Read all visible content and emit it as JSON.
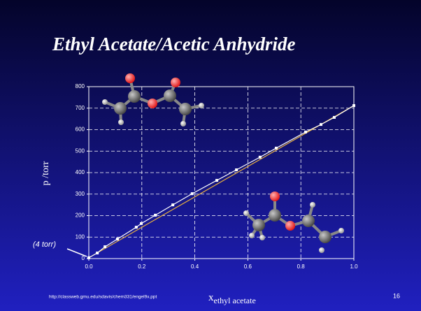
{
  "chart_data": {
    "type": "line",
    "title": "Ethyl Acetate/Acetic Anhydride",
    "ylabel": "p /torr",
    "xlabel": "x",
    "xlabel_subscript": "ethyl acetate",
    "annotation": "(4 torr)",
    "xlim": [
      0,
      1
    ],
    "ylim": [
      0,
      800
    ],
    "xticks": [
      {
        "value": 0,
        "label": "0.0"
      },
      {
        "value": 0.2,
        "label": "0.2"
      },
      {
        "value": 0.4,
        "label": "0.4"
      },
      {
        "value": 0.6,
        "label": "0.6"
      },
      {
        "value": 0.8,
        "label": "0.8"
      },
      {
        "value": 1,
        "label": "1.0"
      }
    ],
    "yticks": [
      0,
      100,
      200,
      300,
      400,
      500,
      600,
      700,
      800
    ],
    "grid": true,
    "series": [
      {
        "color": "#ffffff",
        "marker": "square",
        "x": [
          0,
          0.032,
          0.061,
          0.108,
          0.179,
          0.198,
          0.251,
          0.317,
          0.39,
          0.483,
          0.557,
          0.646,
          0.707,
          0.818,
          0.876,
          0.926,
          1.0
        ],
        "values": [
          4,
          26,
          55,
          91,
          146,
          163,
          202,
          250,
          302,
          364,
          413,
          472,
          514,
          589,
          624,
          657,
          712
        ]
      },
      {
        "color": "#e8b040",
        "x": [
          0,
          1.0
        ],
        "values": [
          4,
          712
        ]
      }
    ]
  },
  "footer": {
    "url": "http://classweb.gmu.edu/sdavis/chem331/engel9x.ppt",
    "page": "16"
  }
}
